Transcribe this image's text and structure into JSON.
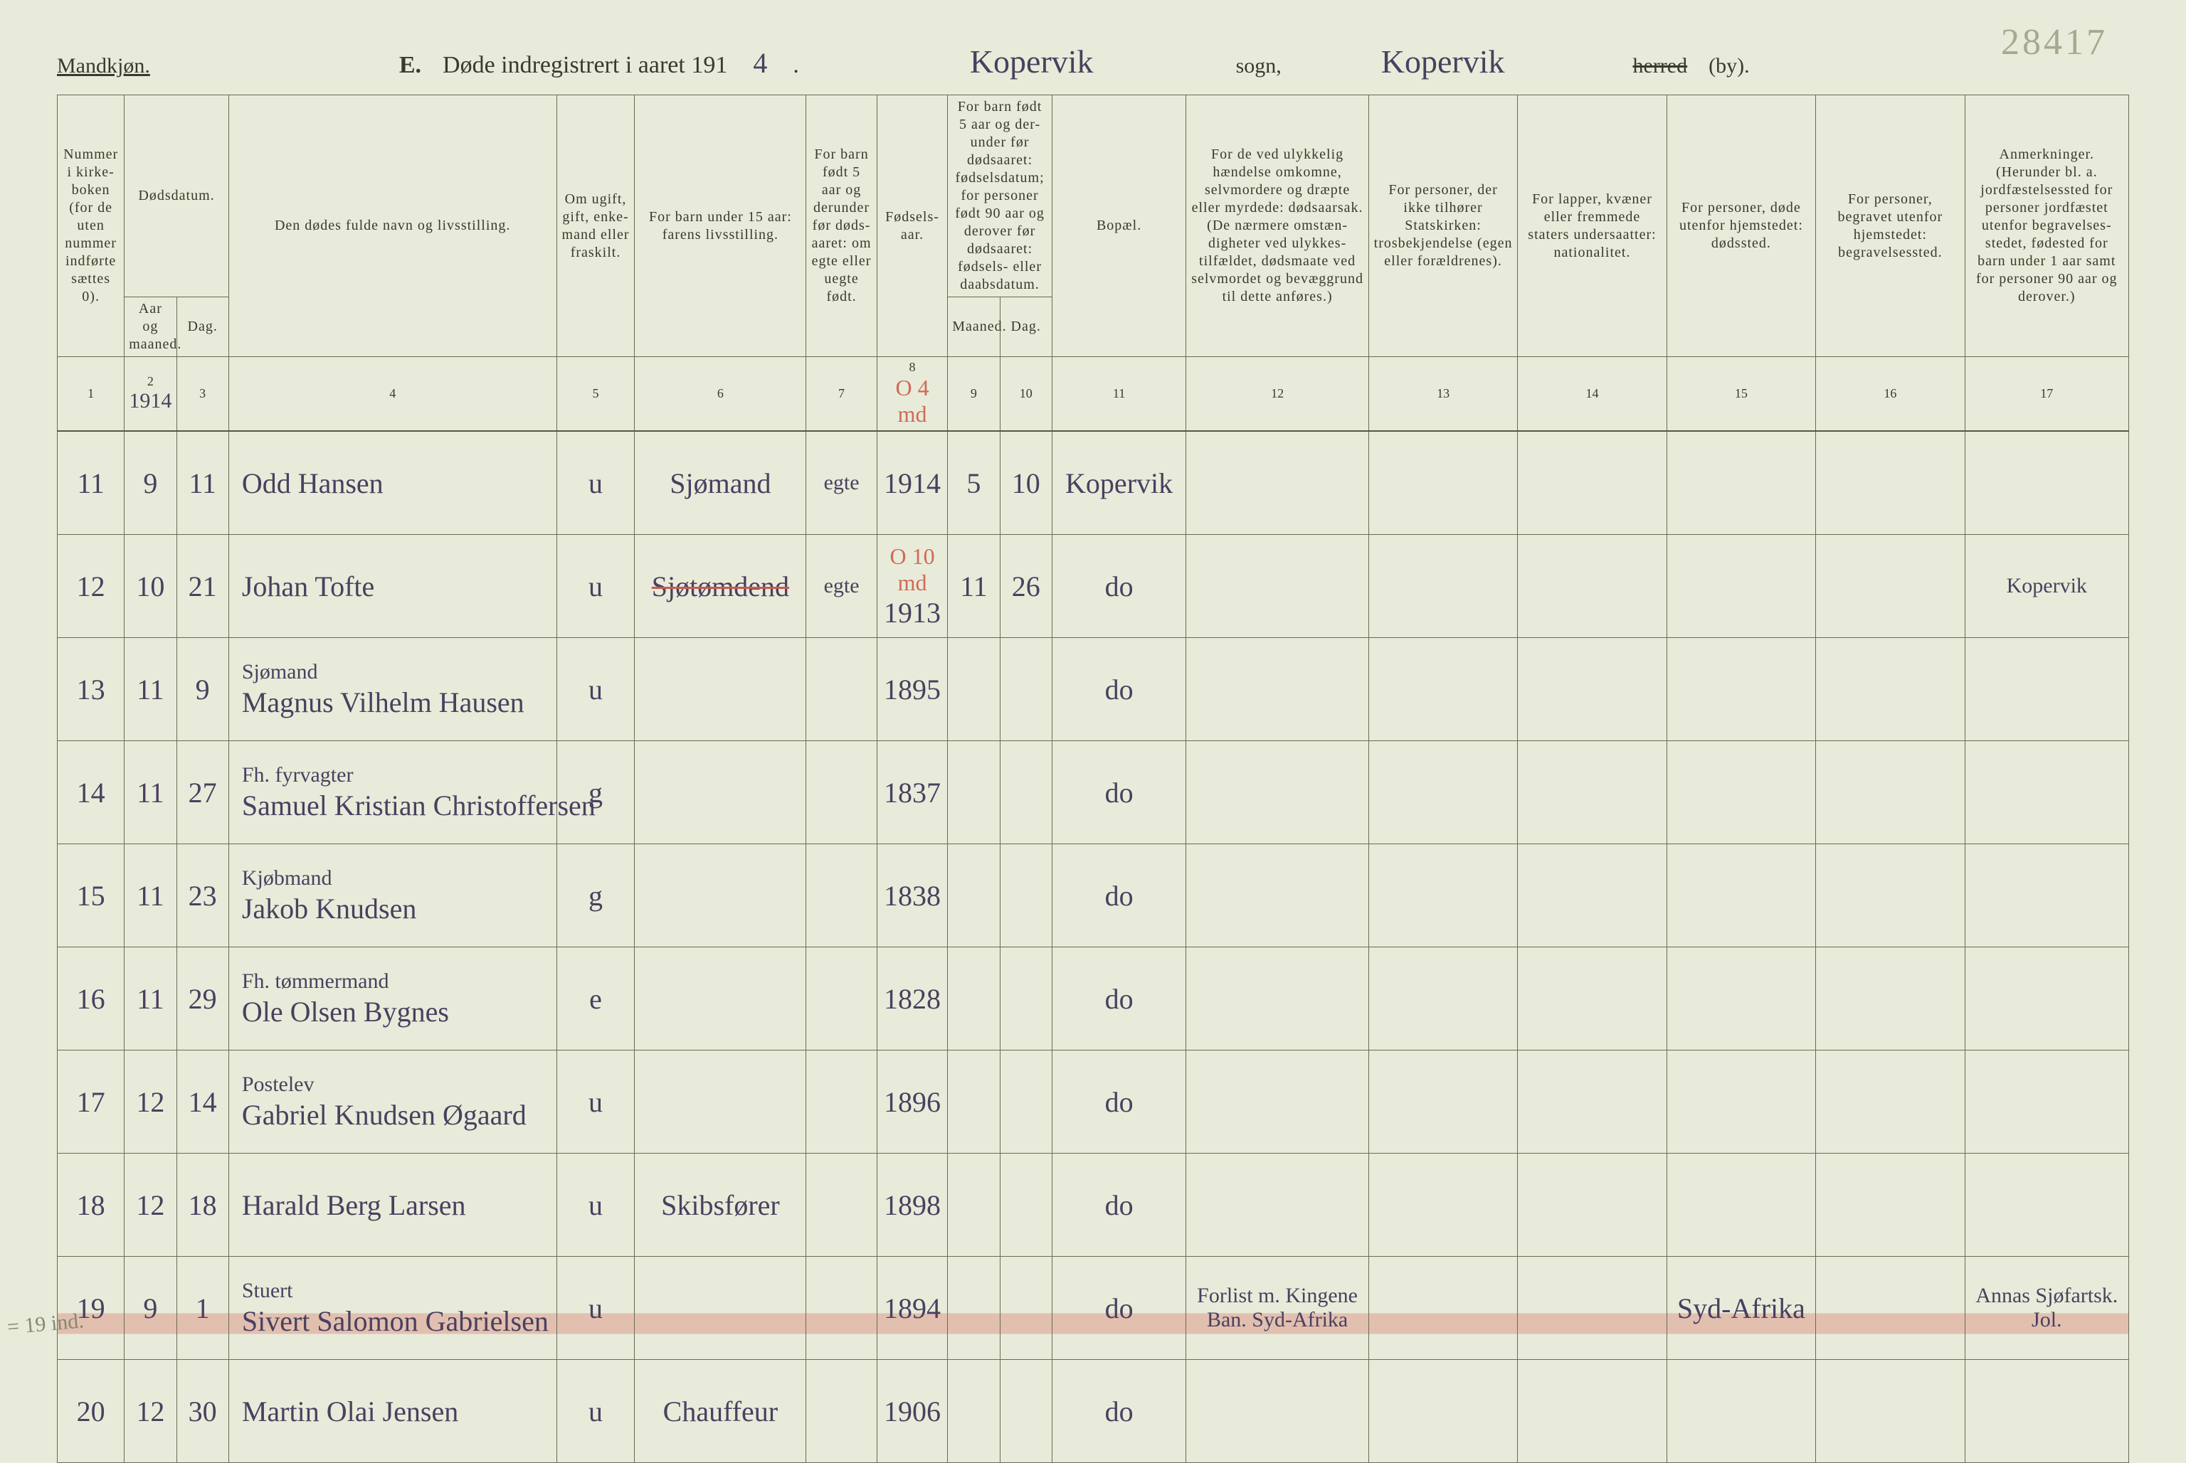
{
  "page_number_pencil": "28417",
  "header": {
    "sex": "Mandkjøn.",
    "section_letter": "E.",
    "title_prefix": "Døde indregistrert i aaret 191",
    "year_suffix": "4",
    "title_suffix": ".",
    "sogn_cursive": "Kopervik",
    "sogn_label": "sogn,",
    "herred_cursive": "Kopervik",
    "herred_struck": "herred",
    "by_label": "(by)."
  },
  "colheads": {
    "c1": "Nummer i kirke- boken (for de uten nummer indførte sættes 0).",
    "c23_top": "Dødsdatum.",
    "c2": "Aar og maaned.",
    "c3": "Dag.",
    "c4": "Den dødes fulde navn og livsstilling.",
    "c5": "Om ugift, gift, enke- mand eller fraskilt.",
    "c6": "For barn under 15 aar: farens livsstilling.",
    "c7": "For barn født 5 aar og derunder før døds- aaret: om egte eller uegte født.",
    "c8": "Fødsels- aar.",
    "c910_top": "For barn født 5 aar og der- under før dødsaaret: fødselsdatum; for personer født 90 aar og derover før dødsaaret: fødsels- eller daabsdatum.",
    "c9": "Maaned.",
    "c10": "Dag.",
    "c11": "Bopæl.",
    "c12": "For de ved ulykkelig hændelse omkomne, selvmordere og dræpte eller myrdede: dødsaarsak. (De nærmere omstæn- digheter ved ulykkes- tilfældet, dødsmaate ved selvmordet og bevæggrund til dette anføres.)",
    "c13": "For personer, der ikke tilhører Statskirken: trosbekjendelse (egen eller forældrenes).",
    "c14": "For lapper, kvæner eller fremmede staters undersaatter: nationalitet.",
    "c15": "For personer, døde utenfor hjemstedet: dødssted.",
    "c16": "For personer, begravet utenfor hjemstedet: begravelsessted.",
    "c17": "Anmerkninger. (Herunder bl. a. jordfæstelsessted for personer jordfæstet utenfor begravelses- stedet, fødested for barn under 1 aar samt for personer 90 aar og derover.)"
  },
  "colnums": [
    "1",
    "2",
    "3",
    "4",
    "5",
    "6",
    "7",
    "8",
    "9",
    "10",
    "11",
    "12",
    "13",
    "14",
    "15",
    "16",
    "17"
  ],
  "year_under_col2": "1914",
  "red_over_col8_1": "O  4 md",
  "red_over_col8_2": "O  10 md",
  "rows": [
    {
      "num": "11",
      "mnd": "9",
      "dag": "11",
      "occ": "",
      "name": "Odd Hansen",
      "civ": "u",
      "parent": "Sjømand",
      "egte": "egte",
      "faar": "1914",
      "fmnd": "5",
      "fdag": "10",
      "bopel": "Kopervik",
      "c12": "",
      "c13": "",
      "c14": "",
      "c15": "",
      "c16": "",
      "c17": ""
    },
    {
      "num": "12",
      "mnd": "10",
      "dag": "21",
      "occ": "",
      "name": "Johan Tofte",
      "civ": "u",
      "parent": "Sjøtømdend",
      "egte": "egte",
      "faar": "1913",
      "fmnd": "11",
      "fdag": "26",
      "bopel": "do",
      "c12": "",
      "c13": "",
      "c14": "",
      "c15": "",
      "c16": "",
      "c17": "Kopervik",
      "strike_parent": true
    },
    {
      "num": "13",
      "mnd": "11",
      "dag": "9",
      "occ": "Sjømand",
      "name": "Magnus Vilhelm Hausen",
      "civ": "u",
      "parent": "",
      "egte": "",
      "faar": "1895",
      "fmnd": "",
      "fdag": "",
      "bopel": "do",
      "c12": "",
      "c13": "",
      "c14": "",
      "c15": "",
      "c16": "",
      "c17": ""
    },
    {
      "num": "14",
      "mnd": "11",
      "dag": "27",
      "occ": "Fh. fyrvagter",
      "name": "Samuel Kristian Christoffersen",
      "civ": "g",
      "parent": "",
      "egte": "",
      "faar": "1837",
      "fmnd": "",
      "fdag": "",
      "bopel": "do",
      "c12": "",
      "c13": "",
      "c14": "",
      "c15": "",
      "c16": "",
      "c17": ""
    },
    {
      "num": "15",
      "mnd": "11",
      "dag": "23",
      "occ": "Kjøbmand",
      "name": "Jakob Knudsen",
      "civ": "g",
      "parent": "",
      "egte": "",
      "faar": "1838",
      "fmnd": "",
      "fdag": "",
      "bopel": "do",
      "c12": "",
      "c13": "",
      "c14": "",
      "c15": "",
      "c16": "",
      "c17": ""
    },
    {
      "num": "16",
      "mnd": "11",
      "dag": "29",
      "occ": "Fh. tømmermand",
      "name": "Ole Olsen Bygnes",
      "civ": "e",
      "parent": "",
      "egte": "",
      "faar": "1828",
      "fmnd": "",
      "fdag": "",
      "bopel": "do",
      "c12": "",
      "c13": "",
      "c14": "",
      "c15": "",
      "c16": "",
      "c17": ""
    },
    {
      "num": "17",
      "mnd": "12",
      "dag": "14",
      "occ": "Postelev",
      "name": "Gabriel Knudsen Øgaard",
      "civ": "u",
      "parent": "",
      "egte": "",
      "faar": "1896",
      "fmnd": "",
      "fdag": "",
      "bopel": "do",
      "c12": "",
      "c13": "",
      "c14": "",
      "c15": "",
      "c16": "",
      "c17": ""
    },
    {
      "num": "18",
      "mnd": "12",
      "dag": "18",
      "occ": "",
      "name": "Harald Berg Larsen",
      "civ": "u",
      "parent": "Skibsfører",
      "egte": "",
      "faar": "1898",
      "fmnd": "",
      "fdag": "",
      "bopel": "do",
      "c12": "",
      "c13": "",
      "c14": "",
      "c15": "",
      "c16": "",
      "c17": ""
    },
    {
      "num": "19",
      "mnd": "9",
      "dag": "1",
      "occ": "Stuert",
      "name": "Sivert Salomon Gabrielsen",
      "civ": "u",
      "parent": "",
      "egte": "",
      "faar": "1894",
      "fmnd": "",
      "fdag": "",
      "bopel": "do",
      "c12": "Forlist m. Kingene Ban. Syd-Afrika",
      "c13": "",
      "c14": "",
      "c15": "Syd-Afrika",
      "c16": "",
      "c17": "Annas Sjøfartsk. Jol.",
      "highlight": true
    },
    {
      "num": "20",
      "mnd": "12",
      "dag": "30",
      "occ": "",
      "name": "Martin Olai Jensen",
      "civ": "u",
      "parent": "Chauffeur",
      "egte": "",
      "faar": "1906",
      "fmnd": "",
      "fdag": "",
      "bopel": "do",
      "c12": "",
      "c13": "",
      "c14": "",
      "c15": "",
      "c16": "",
      "c17": ""
    }
  ],
  "margin_pencil": "= 19 ind."
}
